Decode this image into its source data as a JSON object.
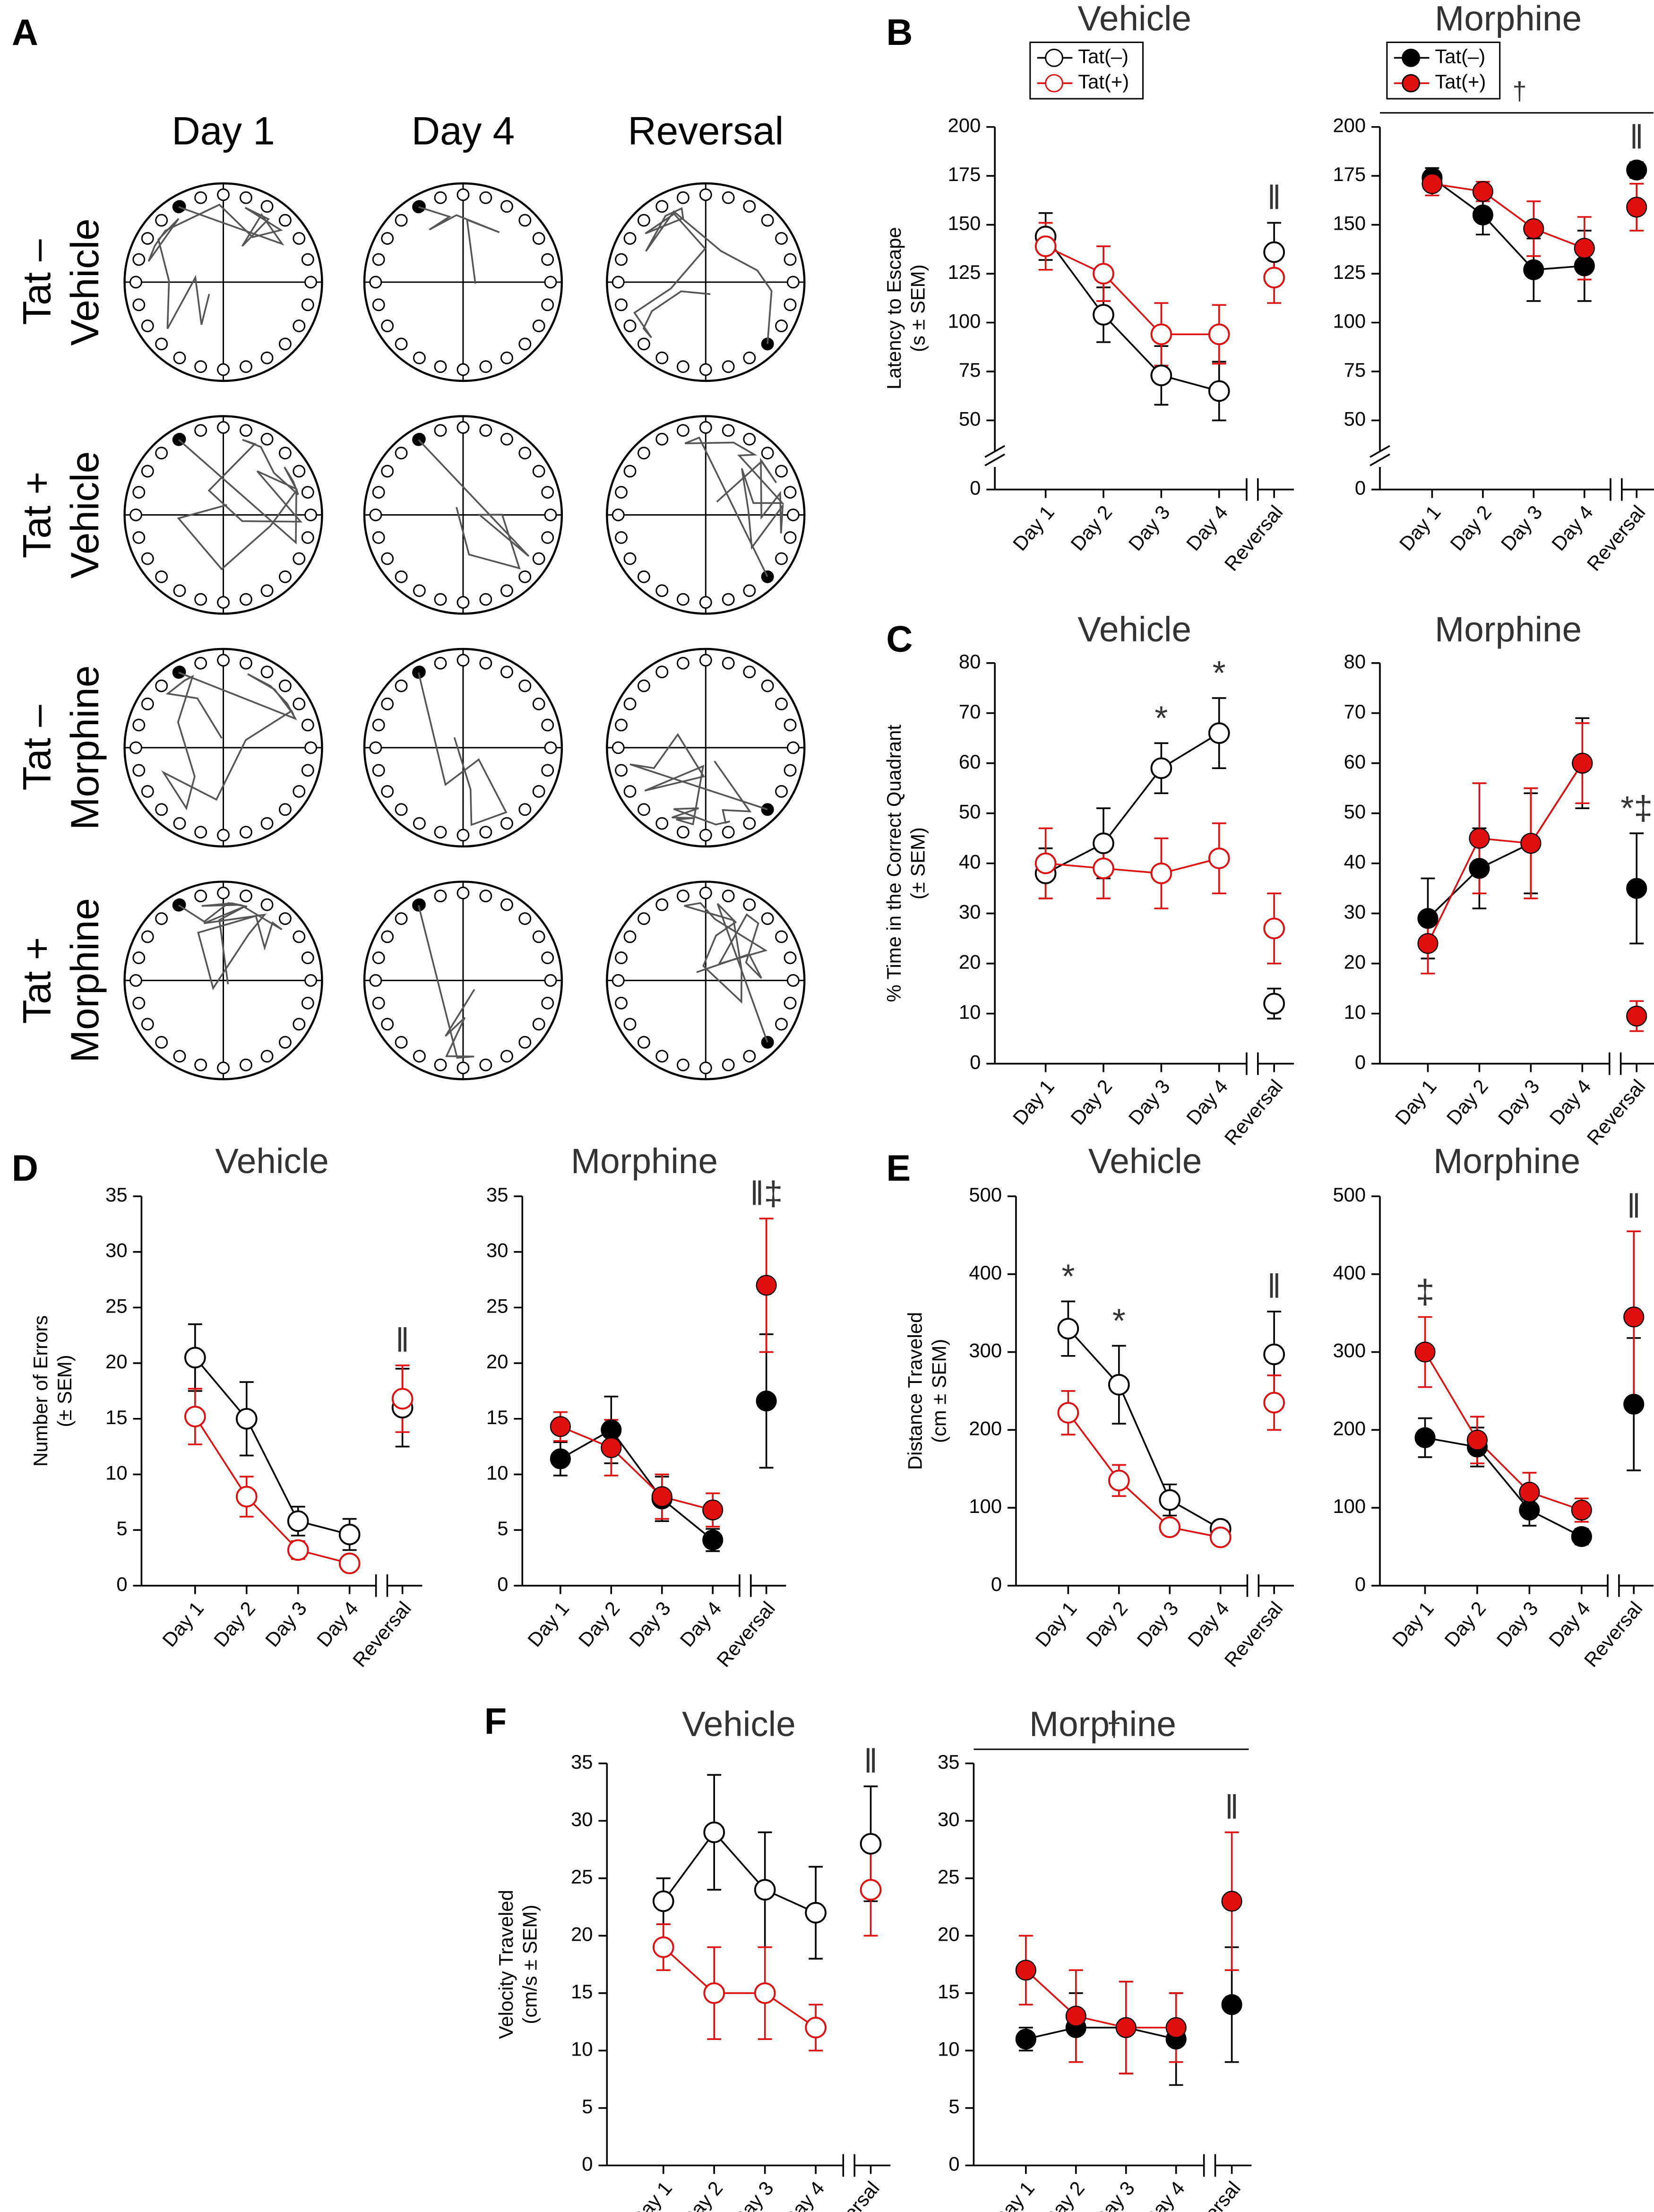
{
  "panel_a": {
    "label": "A",
    "columns": [
      "Day 1",
      "Day 4",
      "Reversal"
    ],
    "rows": [
      [
        "Tat –",
        "Vehicle"
      ],
      [
        "Tat +",
        "Vehicle"
      ],
      [
        "Tat –",
        "Morphine"
      ],
      [
        "Tat +",
        "Morphine"
      ]
    ]
  },
  "chart_data": [
    {
      "type": "line",
      "panel": "B",
      "title": "Vehicle",
      "ylabel": [
        "Latency to Escape",
        "(s ± SEM)"
      ],
      "categories": [
        "Day 1",
        "Day 2",
        "Day 3",
        "Day 4",
        "Reversal"
      ],
      "ylim": [
        0,
        200
      ],
      "yticks": [
        0,
        50,
        75,
        100,
        125,
        150,
        175,
        200
      ],
      "axis_break": true,
      "legend": true,
      "filled": false,
      "series": [
        {
          "name": "Tat(–)",
          "color": "#000000",
          "values": [
            144,
            104,
            73,
            65,
            136
          ],
          "errors": [
            12,
            14,
            15,
            15,
            15
          ]
        },
        {
          "name": "Tat(+)",
          "color": "#e01010",
          "values": [
            139,
            125,
            94,
            94,
            123
          ],
          "errors": [
            12,
            14,
            16,
            15,
            13
          ]
        }
      ],
      "annotations": [
        {
          "text": "‖",
          "category": 4
        }
      ]
    },
    {
      "type": "line",
      "title": "Morphine",
      "categories": [
        "Day 1",
        "Day 2",
        "Day 3",
        "Day 4",
        "Reversal"
      ],
      "ylim": [
        0,
        200
      ],
      "yticks": [
        0,
        50,
        75,
        100,
        125,
        150,
        175,
        200
      ],
      "axis_break": true,
      "legend": true,
      "filled": true,
      "series": [
        {
          "name": "Tat(–)",
          "color": "#000000",
          "values": [
            174,
            155,
            127,
            129,
            178
          ],
          "errors": [
            5,
            10,
            16,
            18,
            4
          ]
        },
        {
          "name": "Tat(+)",
          "color": "#e01010",
          "values": [
            171,
            167,
            148,
            138,
            159
          ],
          "errors": [
            6,
            5,
            14,
            16,
            12
          ]
        }
      ],
      "annotations": [
        {
          "text": "‖",
          "category": 4
        },
        {
          "text": "†",
          "span": true
        }
      ]
    },
    {
      "type": "line",
      "panel": "C",
      "title": "Vehicle",
      "ylabel": [
        "% Time in the Correct Quadrant",
        "(± SEM)"
      ],
      "categories": [
        "Day 1",
        "Day 2",
        "Day 3",
        "Day 4",
        "Reversal"
      ],
      "ylim": [
        0,
        80
      ],
      "yticks": [
        0,
        10,
        20,
        30,
        40,
        50,
        60,
        70,
        80
      ],
      "filled": false,
      "series": [
        {
          "name": "Tat(–)",
          "color": "#000000",
          "values": [
            38,
            44,
            59,
            66,
            12
          ],
          "errors": [
            5,
            7,
            5,
            7,
            3
          ]
        },
        {
          "name": "Tat(+)",
          "color": "#e01010",
          "values": [
            40,
            39,
            38,
            41,
            27
          ],
          "errors": [
            7,
            6,
            7,
            7,
            7
          ]
        }
      ],
      "annotations": [
        {
          "text": "*",
          "category": 2
        },
        {
          "text": "*",
          "category": 3
        }
      ]
    },
    {
      "type": "line",
      "title": "Morphine",
      "categories": [
        "Day 1",
        "Day 2",
        "Day 3",
        "Day 4",
        "Reversal"
      ],
      "ylim": [
        0,
        80
      ],
      "yticks": [
        0,
        10,
        20,
        30,
        40,
        50,
        60,
        70,
        80
      ],
      "filled": true,
      "series": [
        {
          "name": "Tat(–)",
          "color": "#000000",
          "values": [
            29,
            39,
            44,
            60,
            35
          ],
          "errors": [
            8,
            8,
            10,
            9,
            11
          ]
        },
        {
          "name": "Tat(+)",
          "color": "#e01010",
          "values": [
            24,
            45,
            44,
            60,
            9.5
          ],
          "errors": [
            6,
            11,
            11,
            8,
            3
          ]
        }
      ],
      "annotations": [
        {
          "text": "*‡",
          "category": 4
        }
      ]
    },
    {
      "type": "line",
      "panel": "D",
      "title": "Vehicle",
      "ylabel": [
        "Number of Errors",
        "(± SEM)"
      ],
      "categories": [
        "Day 1",
        "Day 2",
        "Day 3",
        "Day 4",
        "Reversal"
      ],
      "ylim": [
        0,
        35
      ],
      "yticks": [
        0,
        5,
        10,
        15,
        20,
        25,
        30,
        35
      ],
      "filled": false,
      "series": [
        {
          "name": "Tat(–)",
          "color": "#000000",
          "values": [
            20.5,
            15,
            5.8,
            4.6,
            16
          ],
          "errors": [
            3,
            3.3,
            1.3,
            1.4,
            3.5
          ]
        },
        {
          "name": "Tat(+)",
          "color": "#e01010",
          "values": [
            15.2,
            8,
            3.2,
            2,
            16.8
          ],
          "errors": [
            2.5,
            1.8,
            0.8,
            0.6,
            3
          ]
        }
      ],
      "annotations": [
        {
          "text": "‖",
          "category": 4
        }
      ]
    },
    {
      "type": "line",
      "title": "Morphine",
      "categories": [
        "Day 1",
        "Day 2",
        "Day 3",
        "Day 4",
        "Reversal"
      ],
      "ylim": [
        0,
        35
      ],
      "yticks": [
        0,
        5,
        10,
        15,
        20,
        25,
        30,
        35
      ],
      "filled": true,
      "series": [
        {
          "name": "Tat(–)",
          "color": "#000000",
          "values": [
            11.4,
            14,
            7.8,
            4.1,
            16.6
          ],
          "errors": [
            1.5,
            3,
            2,
            1,
            6
          ]
        },
        {
          "name": "Tat(+)",
          "color": "#e01010",
          "values": [
            14.3,
            12.4,
            8,
            6.8,
            27
          ],
          "errors": [
            1.3,
            2.5,
            2,
            1.5,
            6
          ]
        }
      ],
      "annotations": [
        {
          "text": "‖‡",
          "category": 4
        }
      ]
    },
    {
      "type": "line",
      "panel": "E",
      "title": "Vehicle",
      "ylabel": [
        "Distance Traveled",
        "(cm ± SEM)"
      ],
      "categories": [
        "Day 1",
        "Day 2",
        "Day 3",
        "Day 4",
        "Reversal"
      ],
      "ylim": [
        0,
        500
      ],
      "yticks": [
        0,
        100,
        200,
        300,
        400,
        500
      ],
      "filled": false,
      "series": [
        {
          "name": "Tat(–)",
          "color": "#000000",
          "values": [
            330,
            258,
            110,
            73,
            297
          ],
          "errors": [
            35,
            50,
            20,
            10,
            55
          ]
        },
        {
          "name": "Tat(+)",
          "color": "#e01010",
          "values": [
            222,
            135,
            75,
            62,
            235
          ],
          "errors": [
            28,
            20,
            10,
            8,
            35
          ]
        }
      ],
      "annotations": [
        {
          "text": "*",
          "category": 0
        },
        {
          "text": "*",
          "category": 1
        },
        {
          "text": "‖",
          "category": 4
        }
      ]
    },
    {
      "type": "line",
      "title": "Morphine",
      "categories": [
        "Day 1",
        "Day 2",
        "Day 3",
        "Day 4",
        "Reversal"
      ],
      "ylim": [
        0,
        500
      ],
      "yticks": [
        0,
        100,
        200,
        300,
        400,
        500
      ],
      "filled": true,
      "series": [
        {
          "name": "Tat(–)",
          "color": "#000000",
          "values": [
            190,
            178,
            97,
            63,
            233
          ],
          "errors": [
            25,
            25,
            20,
            10,
            85
          ]
        },
        {
          "name": "Tat(+)",
          "color": "#e01010",
          "values": [
            300,
            187,
            120,
            97,
            345
          ],
          "errors": [
            45,
            30,
            25,
            15,
            110
          ]
        }
      ],
      "annotations": [
        {
          "text": "‡",
          "category": 0
        },
        {
          "text": "‖",
          "category": 4
        }
      ]
    },
    {
      "type": "line",
      "panel": "F",
      "title": "Vehicle",
      "ylabel": [
        "Velocity Traveled",
        "(cm/s ± SEM)"
      ],
      "categories": [
        "Day 1",
        "Day 2",
        "Day 3",
        "Day 4",
        "Reversal"
      ],
      "ylim": [
        0,
        35
      ],
      "yticks": [
        0,
        5,
        10,
        15,
        20,
        25,
        30,
        35
      ],
      "filled": false,
      "series": [
        {
          "name": "Tat(–)",
          "color": "#000000",
          "values": [
            23,
            29,
            24,
            22,
            28
          ],
          "errors": [
            2,
            5,
            5,
            4,
            5
          ]
        },
        {
          "name": "Tat(+)",
          "color": "#e01010",
          "values": [
            19,
            15,
            15,
            12,
            24
          ],
          "errors": [
            2,
            4,
            4,
            2,
            4
          ]
        }
      ],
      "annotations": [
        {
          "text": "‖",
          "category": 4
        }
      ]
    },
    {
      "type": "line",
      "title": "Morphine",
      "categories": [
        "Day 1",
        "Day 2",
        "Day 3",
        "Day 4",
        "Reversal"
      ],
      "ylim": [
        0,
        35
      ],
      "yticks": [
        0,
        5,
        10,
        15,
        20,
        25,
        30,
        35
      ],
      "filled": true,
      "series": [
        {
          "name": "Tat(–)",
          "color": "#000000",
          "values": [
            11,
            12,
            12,
            11,
            14
          ],
          "errors": [
            1,
            3,
            4,
            4,
            5
          ]
        },
        {
          "name": "Tat(+)",
          "color": "#e01010",
          "values": [
            17,
            13,
            12,
            12,
            23
          ],
          "errors": [
            3,
            4,
            4,
            3,
            6
          ]
        }
      ],
      "annotations": [
        {
          "text": "‖",
          "category": 4
        },
        {
          "text": "†",
          "span": true
        }
      ]
    }
  ]
}
